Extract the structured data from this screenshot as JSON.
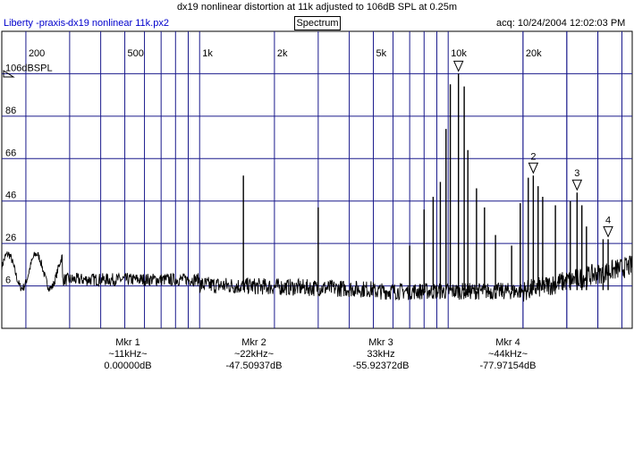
{
  "title": "dx19 nonlinear distortion at 11k adjusted to 106dB SPL at 0.25m",
  "header": {
    "app_name": "Liberty -praxis-",
    "file_name": "dx19 nonlinear 11k.px2",
    "view_label": "Spectrum",
    "acquired": "acq: 10/24/2004 12:02:03 PM"
  },
  "colors": {
    "grid": "#1a1a8c",
    "trace": "#000000",
    "app_text": "#0000cc"
  },
  "chart_data": {
    "type": "line",
    "x_scale": "log",
    "xlim": [
      160,
      55000
    ],
    "ylim": [
      -14,
      126
    ],
    "x_ticks": [
      200,
      500,
      1000,
      2000,
      5000,
      10000,
      20000
    ],
    "x_tick_labels": [
      "200",
      "500",
      "1k",
      "2k",
      "5k",
      "10k",
      "20k"
    ],
    "y_ticks": [
      106,
      86,
      66,
      46,
      26,
      6
    ],
    "y_tick_labels": [
      "106dBSPL",
      "86",
      "66",
      "46",
      "26",
      "6"
    ],
    "grid": true,
    "peaks": [
      {
        "x": 1500,
        "y": 58
      },
      {
        "x": 3000,
        "y": 43
      },
      {
        "x": 7000,
        "y": 25
      },
      {
        "x": 8000,
        "y": 42
      },
      {
        "x": 8700,
        "y": 48
      },
      {
        "x": 9300,
        "y": 55
      },
      {
        "x": 9800,
        "y": 80
      },
      {
        "x": 10200,
        "y": 101
      },
      {
        "x": 11000,
        "y": 106
      },
      {
        "x": 11600,
        "y": 100
      },
      {
        "x": 12000,
        "y": 70
      },
      {
        "x": 13000,
        "y": 52
      },
      {
        "x": 14000,
        "y": 43
      },
      {
        "x": 15500,
        "y": 30
      },
      {
        "x": 18000,
        "y": 25
      },
      {
        "x": 19500,
        "y": 45
      },
      {
        "x": 21000,
        "y": 57
      },
      {
        "x": 22000,
        "y": 58
      },
      {
        "x": 23000,
        "y": 53
      },
      {
        "x": 24000,
        "y": 48
      },
      {
        "x": 27000,
        "y": 44
      },
      {
        "x": 31000,
        "y": 46
      },
      {
        "x": 33000,
        "y": 50
      },
      {
        "x": 34500,
        "y": 44
      },
      {
        "x": 36000,
        "y": 34
      },
      {
        "x": 42000,
        "y": 28
      },
      {
        "x": 44000,
        "y": 28
      }
    ],
    "markers": [
      {
        "label": "",
        "x": 11000,
        "y": 106
      },
      {
        "label": "2",
        "x": 22000,
        "y": 58
      },
      {
        "label": "3",
        "x": 33000,
        "y": 50
      },
      {
        "label": "4",
        "x": 44000,
        "y": 28
      }
    ]
  },
  "marker_readouts": [
    {
      "name": "Mkr 1",
      "freq": "~11kHz~",
      "value": "0.00000dB"
    },
    {
      "name": "Mkr 2",
      "freq": "~22kHz~",
      "value": "-47.50937dB"
    },
    {
      "name": "Mkr 3",
      "freq": "33kHz",
      "value": "-55.92372dB"
    },
    {
      "name": "Mkr 4",
      "freq": "~44kHz~",
      "value": "-77.97154dB"
    }
  ]
}
